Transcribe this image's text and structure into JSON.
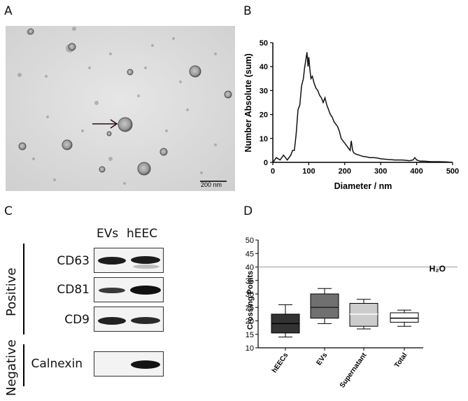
{
  "panels": {
    "a": "A",
    "b": "B",
    "c": "C",
    "d": "D"
  },
  "em": {
    "scale_bar": "200 nm"
  },
  "nta_chart": {
    "type": "line",
    "xlabel": "Diameter / nm",
    "ylabel": "Number Absolute (sum)",
    "xlim": [
      0,
      500
    ],
    "ylim": [
      0,
      50
    ],
    "xticks": [
      0,
      100,
      200,
      300,
      400,
      500
    ],
    "yticks": [
      0,
      10,
      20,
      30,
      40,
      50
    ],
    "line_color": "#111111",
    "x": [
      0,
      10,
      20,
      30,
      40,
      50,
      55,
      60,
      65,
      70,
      75,
      80,
      85,
      88,
      92,
      95,
      98,
      100,
      103,
      106,
      110,
      115,
      120,
      125,
      130,
      135,
      140,
      145,
      150,
      155,
      160,
      165,
      170,
      175,
      180,
      185,
      190,
      200,
      210,
      215,
      218,
      222,
      225,
      230,
      240,
      250,
      260,
      270,
      280,
      290,
      300,
      320,
      340,
      360,
      380,
      390,
      395,
      400,
      410,
      420,
      440,
      460,
      480,
      500
    ],
    "y": [
      0,
      2,
      1,
      3,
      1,
      3,
      5,
      5,
      12,
      22,
      24,
      32,
      35,
      39,
      43,
      46,
      40,
      44,
      39,
      35,
      36,
      33,
      31,
      30,
      28,
      27,
      25,
      27,
      24,
      22,
      20,
      19,
      17,
      16,
      15,
      13,
      10,
      8,
      6,
      5,
      9,
      5,
      4,
      3.5,
      3,
      2.5,
      2.3,
      2,
      2,
      1.8,
      1.5,
      1.2,
      1,
      1,
      0.7,
      1,
      2,
      1,
      0.5,
      0.5,
      0.3,
      0.3,
      0.2,
      0
    ]
  },
  "western_blot": {
    "lanes": [
      "EVs",
      "hEEC"
    ],
    "group_positive": "Positive",
    "group_negative": "Negative",
    "rows": [
      {
        "label": "CD63",
        "evs": 0.9,
        "heec": 0.95
      },
      {
        "label": "CD81",
        "evs": 0.7,
        "heec": 1.0
      },
      {
        "label": "CD9",
        "evs": 0.95,
        "heec": 0.9
      },
      {
        "label": "Calnexin",
        "evs": 0.0,
        "heec": 1.0
      }
    ]
  },
  "pcr_chart": {
    "type": "boxplot",
    "ylabel": "Crossing Points",
    "ylim": [
      10,
      50
    ],
    "yticks": [
      10,
      15,
      20,
      25,
      30,
      35,
      40,
      45,
      50
    ],
    "reference_line": {
      "value": 40,
      "label": "H₂O"
    },
    "categories": [
      "hEECs",
      "EVs",
      "Supernatant",
      "Total"
    ],
    "boxes": [
      {
        "min": 14,
        "q1": 15.5,
        "median": 19,
        "q3": 22.5,
        "max": 26,
        "color": "#333333",
        "median_color": "#000000"
      },
      {
        "min": 19,
        "q1": 21,
        "median": 25,
        "q3": 30,
        "max": 32,
        "color": "#707070",
        "median_color": "#222222"
      },
      {
        "min": 17,
        "q1": 18,
        "median": 22.5,
        "q3": 26.5,
        "max": 28,
        "color": "#cccccc",
        "median_color": "#ffffff"
      },
      {
        "min": 18,
        "q1": 19.5,
        "median": 21,
        "q3": 23,
        "max": 24,
        "color": "#ffffff",
        "median_color": "#000000"
      }
    ]
  }
}
